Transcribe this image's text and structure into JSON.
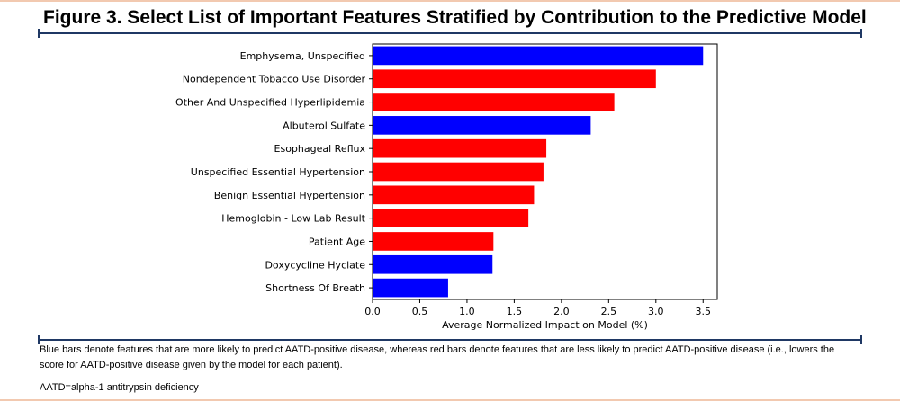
{
  "figure": {
    "title": "Figure 3. Select List of Important Features Stratified by Contribution to the Predictive Model"
  },
  "footnotes": {
    "note": "Blue bars denote features that are more likely to predict AATD-positive disease, whereas red bars denote features that are less likely to predict AATD-positive disease (i.e., lowers the score for AATD-positive disease given by the model for each patient).",
    "abbreviation": "AATD=alpha-1 antitrypsin deficiency"
  },
  "colors": {
    "positive": "#0000ff",
    "negative": "#ff0000",
    "rule": "#1f3864"
  },
  "chart_data": {
    "type": "bar",
    "orientation": "horizontal",
    "title": "",
    "xlabel": "Average Normalized Impact on Model (%)",
    "ylabel": "",
    "xlim": [
      0,
      3.65
    ],
    "xticks": [
      0.0,
      0.5,
      1.0,
      1.5,
      2.0,
      2.5,
      3.0,
      3.5
    ],
    "xtick_labels": [
      "0.0",
      "0.5",
      "1.0",
      "1.5",
      "2.0",
      "2.5",
      "3.0",
      "3.5"
    ],
    "grid": false,
    "categories": [
      "Emphysema, Unspecified",
      "Nondependent Tobacco Use Disorder",
      "Other And Unspecified Hyperlipidemia",
      "Albuterol Sulfate",
      "Esophageal Reflux",
      "Unspecified Essential Hypertension",
      "Benign Essential Hypertension",
      "Hemoglobin - Low Lab Result",
      "Patient Age",
      "Doxycycline Hyclate",
      "Shortness Of Breath"
    ],
    "values": [
      3.5,
      3.0,
      2.56,
      2.31,
      1.84,
      1.81,
      1.71,
      1.65,
      1.28,
      1.27,
      0.8
    ],
    "bar_colors": [
      "blue",
      "red",
      "red",
      "blue",
      "red",
      "red",
      "red",
      "red",
      "red",
      "blue",
      "blue"
    ]
  }
}
